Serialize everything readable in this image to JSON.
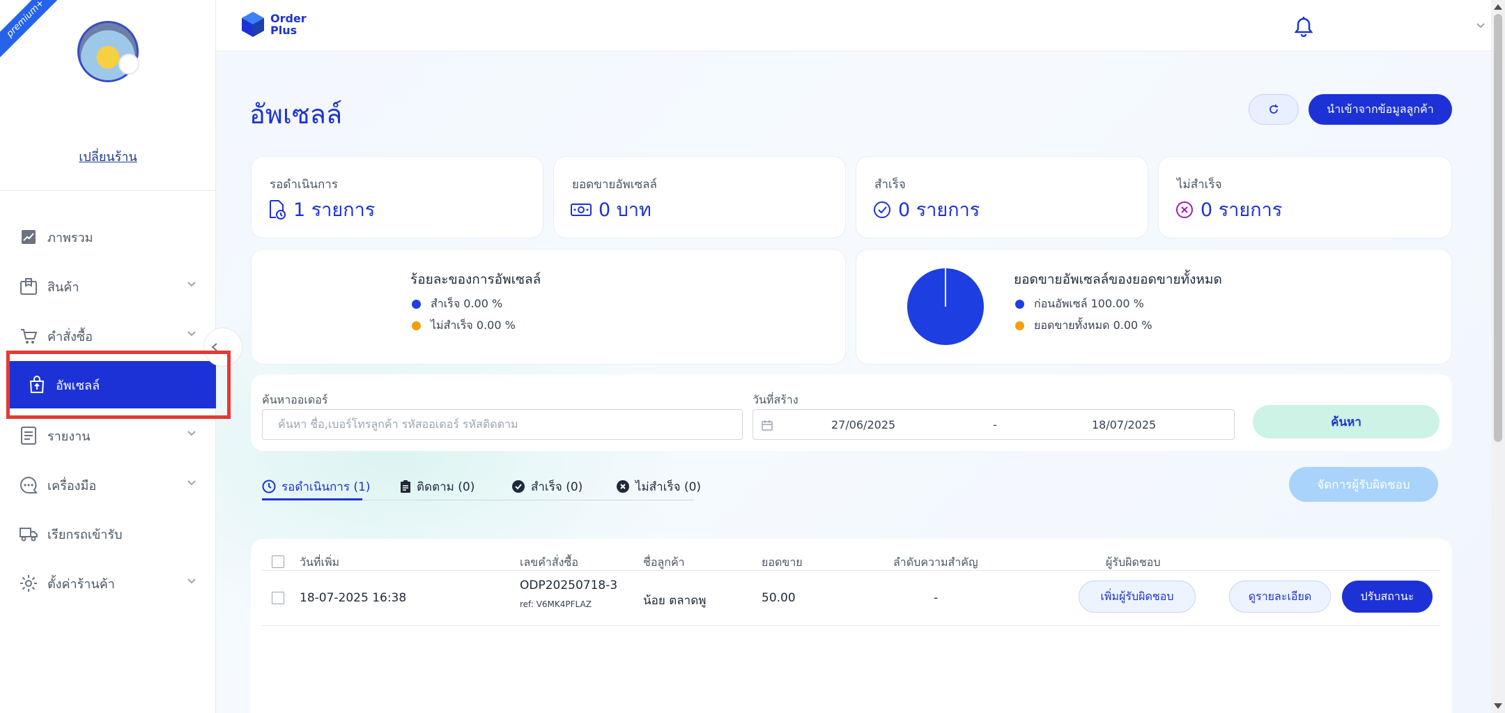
{
  "sidebar": {
    "ribbon": "premium+",
    "switch_shop": "เปลี่ยนร้าน",
    "items": [
      {
        "label": "ภาพรวม",
        "icon": "chart-icon"
      },
      {
        "label": "สินค้า",
        "icon": "box-icon"
      },
      {
        "label": "คำสั่งซื้อ",
        "icon": "cart-icon"
      },
      {
        "label": "อัพเซลล์",
        "icon": "bag-upsell-icon"
      },
      {
        "label": "รายงาน",
        "icon": "report-icon"
      },
      {
        "label": "เครื่องมือ",
        "icon": "chat-bubble-icon"
      },
      {
        "label": "เรียกรถเข้ารับ",
        "icon": "truck-icon"
      },
      {
        "label": "ตั้งค่าร้านค้า",
        "icon": "gear-icon"
      }
    ]
  },
  "header": {
    "logo_line1": "Order",
    "logo_line2": "Plus"
  },
  "page": {
    "title": "อัพเซลล์",
    "import_label": "นำเข้าจากข้อมูลลูกค้า"
  },
  "stats": [
    {
      "label": "รอดำเนินการ",
      "value": "1 รายการ"
    },
    {
      "label": "ยอดขายอัพเซลล์",
      "value": "0 บาท"
    },
    {
      "label": "สำเร็จ",
      "value": "0 รายการ"
    },
    {
      "label": "ไม่สำเร็จ",
      "value": "0 รายการ"
    }
  ],
  "chart_data": [
    {
      "type": "pie",
      "title": "ร้อยละของการอัพเซลล์",
      "categories": [
        "สำเร็จ",
        "ไม่สำเร็จ"
      ],
      "values": [
        0,
        0
      ],
      "legend": [
        "สำเร็จ 0.00 %",
        "ไม่สำเร็จ 0.00 %"
      ],
      "colors": [
        "#1d3ee0",
        "#f59e0b"
      ]
    },
    {
      "type": "pie",
      "title": "ยอดขายอัพเซลล์ของยอดขายทั้งหมด",
      "categories": [
        "ก่อนอัพเซล์",
        "ยอดขายทั้งหมด"
      ],
      "values": [
        100,
        0
      ],
      "legend": [
        "ก่อนอัพเซล์ 100.00 %",
        "ยอดขายทั้งหมด 0.00 %"
      ],
      "colors": [
        "#1d3ee0",
        "#f59e0b"
      ]
    }
  ],
  "search": {
    "order_label": "ค้นหาออเดอร์",
    "order_placeholder": "ค้นหา ชื่อ,เบอร์โทรลูกค้า รหัสออเดอร์ รหัสติดตาม",
    "date_label": "วันที่สร้าง",
    "date_from": "27/06/2025",
    "date_sep": "-",
    "date_to": "18/07/2025",
    "button": "ค้นหา"
  },
  "tabs": [
    {
      "label": "รอดำเนินการ (1)"
    },
    {
      "label": "ติดตาม (0)"
    },
    {
      "label": "สำเร็จ (0)"
    },
    {
      "label": "ไม่สำเร็จ (0)"
    }
  ],
  "manage_label": "จัดการผู้รับผิดชอบ",
  "table": {
    "headers": [
      "วันที่เพิ่ม",
      "เลขคำสั่งซื้อ",
      "ชื่อลูกค้า",
      "ยอดขาย",
      "ลำดับความสำคัญ",
      "ผู้รับผิดชอบ"
    ],
    "rows": [
      {
        "date": "18-07-2025 16:38",
        "order_no": "ODP20250718-3",
        "ref": "ref: V6MK4PFLAZ",
        "customer": "น้อย ตลาดพู",
        "amount": "50.00",
        "priority": "-",
        "add_owner": "เพิ่มผู้รับผิดชอบ",
        "details": "ดูรายละเอียด",
        "update_status": "ปรับสถานะ"
      }
    ]
  }
}
